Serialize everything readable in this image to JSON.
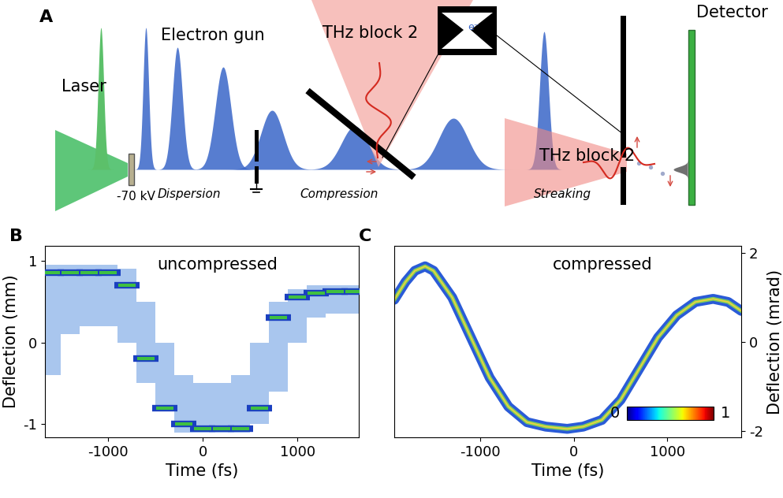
{
  "panel_A": {
    "letter": "A",
    "labels": {
      "laser": "Laser",
      "gun": "Electron gun",
      "voltage": "-70 kV",
      "thz1": "THz block 2",
      "thz2": "THz block 2",
      "detector": "Detector",
      "electron": "e⁻",
      "dispersion": "Dispersion",
      "compression": "Compression",
      "streaking": "Streaking"
    }
  },
  "chart_data": [
    {
      "type": "band",
      "letter": "B",
      "title": "uncompressed",
      "x": [
        -1600,
        -1400,
        -1200,
        -1000,
        -800,
        -600,
        -400,
        -200,
        0,
        200,
        400,
        600,
        800,
        1000,
        1200,
        1400,
        1600
      ],
      "lower": [
        -0.4,
        0.1,
        0.2,
        0.2,
        0.0,
        -0.5,
        -0.8,
        -1.1,
        -1.1,
        -1.1,
        -1.1,
        -1.0,
        -0.6,
        0.0,
        0.3,
        0.35,
        0.35
      ],
      "upper": [
        0.95,
        0.95,
        0.95,
        0.95,
        0.9,
        0.5,
        0.0,
        -0.4,
        -0.5,
        -0.5,
        -0.4,
        0.0,
        0.5,
        0.65,
        0.7,
        0.7,
        0.7
      ],
      "values": [
        0.85,
        0.85,
        0.85,
        0.85,
        0.7,
        -0.2,
        -0.8,
        -1.0,
        -1.05,
        -1.05,
        -1.05,
        -0.8,
        0.3,
        0.55,
        0.6,
        0.62,
        0.62
      ],
      "color": "#a9c6ee",
      "x_label": "Time (fs)",
      "y_label": "Deflection (mm)",
      "xlim": [
        -1670,
        1650
      ],
      "xticks": [
        -1000,
        0,
        1000
      ],
      "ylim": [
        -1.16,
        1.18
      ],
      "yticks": [
        -1,
        0,
        1
      ]
    },
    {
      "type": "line",
      "letter": "C",
      "title": "compressed",
      "x": [
        -1920,
        -1800,
        -1700,
        -1590,
        -1500,
        -1300,
        -1100,
        -900,
        -700,
        -500,
        -300,
        -70,
        100,
        300,
        500,
        700,
        900,
        1100,
        1300,
        1490,
        1650,
        1790
      ],
      "values": [
        0.95,
        1.35,
        1.6,
        1.7,
        1.6,
        1.0,
        0.1,
        -0.8,
        -1.45,
        -1.8,
        -1.9,
        -1.95,
        -1.9,
        -1.75,
        -1.3,
        -0.6,
        0.1,
        0.6,
        0.9,
        0.97,
        0.9,
        0.7
      ],
      "color": "#2a5bd7",
      "x_label": "Time (fs)",
      "y_label": "Deflection (mrad)",
      "xlim": [
        -1920,
        1790
      ],
      "xticks": [
        -1000,
        0,
        1000
      ],
      "ylim": [
        -2.14,
        2.16
      ],
      "yticks": [
        -2,
        0,
        2
      ],
      "colorbar_range": [
        0,
        1
      ],
      "colorbar_ticks": [
        0,
        1
      ]
    }
  ]
}
